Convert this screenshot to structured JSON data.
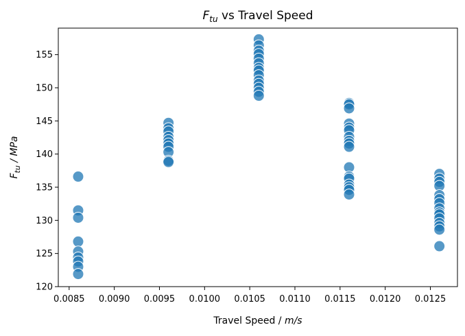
{
  "chart_data": {
    "type": "scatter",
    "title": {
      "main": "F",
      "sub": "tu",
      "rest": " vs Travel Speed"
    },
    "xlabel": {
      "text": "Travel Speed / ",
      "unit": "m/s"
    },
    "ylabel": {
      "main": "F",
      "sub": "tu",
      "unit": " / MPa"
    },
    "xlim": [
      0.00838,
      0.0128
    ],
    "ylim": [
      120,
      159
    ],
    "xticks": [
      "0.0085",
      "0.0090",
      "0.0095",
      "0.0100",
      "0.0105",
      "0.0110",
      "0.0115",
      "0.0120",
      "0.0125"
    ],
    "xtick_values": [
      0.0085,
      0.009,
      0.0095,
      0.01,
      0.0105,
      0.011,
      0.0115,
      0.012,
      0.0125
    ],
    "yticks": [
      "120",
      "125",
      "130",
      "135",
      "140",
      "145",
      "150",
      "155"
    ],
    "ytick_values": [
      120,
      125,
      130,
      135,
      140,
      145,
      150,
      155
    ],
    "grid": false,
    "marker_color": "#1f77b4",
    "series": [
      {
        "points": [
          [
            0.0086,
            136.6
          ],
          [
            0.0086,
            131.5
          ],
          [
            0.0086,
            130.4
          ],
          [
            0.0086,
            126.8
          ],
          [
            0.0086,
            125.3
          ],
          [
            0.0086,
            124.4
          ],
          [
            0.0086,
            123.8
          ],
          [
            0.0086,
            123.0
          ],
          [
            0.0086,
            121.9
          ],
          [
            0.0096,
            144.7
          ],
          [
            0.0096,
            143.9
          ],
          [
            0.0096,
            143.4
          ],
          [
            0.0096,
            142.6
          ],
          [
            0.0096,
            142.1
          ],
          [
            0.0096,
            141.6
          ],
          [
            0.0096,
            141.1
          ],
          [
            0.0096,
            140.3
          ],
          [
            0.0096,
            139.0
          ],
          [
            0.0096,
            138.8
          ],
          [
            0.0106,
            157.3
          ],
          [
            0.0106,
            156.4
          ],
          [
            0.0106,
            155.6
          ],
          [
            0.0106,
            155.1
          ],
          [
            0.0106,
            154.4
          ],
          [
            0.0106,
            153.7
          ],
          [
            0.0106,
            153.0
          ],
          [
            0.0106,
            152.6
          ],
          [
            0.0106,
            151.9
          ],
          [
            0.0106,
            151.1
          ],
          [
            0.0106,
            150.6
          ],
          [
            0.0106,
            150.0
          ],
          [
            0.0106,
            149.4
          ],
          [
            0.0106,
            148.8
          ],
          [
            0.0116,
            147.7
          ],
          [
            0.0116,
            147.5
          ],
          [
            0.0116,
            146.9
          ],
          [
            0.0116,
            144.6
          ],
          [
            0.0116,
            144.0
          ],
          [
            0.0116,
            143.6
          ],
          [
            0.0116,
            142.6
          ],
          [
            0.0116,
            142.0
          ],
          [
            0.0116,
            141.6
          ],
          [
            0.0116,
            141.1
          ],
          [
            0.0116,
            138.0
          ],
          [
            0.0116,
            136.6
          ],
          [
            0.0116,
            136.3
          ],
          [
            0.0116,
            135.4
          ],
          [
            0.0116,
            135.0
          ],
          [
            0.0116,
            134.6
          ],
          [
            0.0116,
            133.9
          ],
          [
            0.0126,
            137.0
          ],
          [
            0.0126,
            136.3
          ],
          [
            0.0126,
            135.8
          ],
          [
            0.0126,
            135.2
          ],
          [
            0.0126,
            133.8
          ],
          [
            0.0126,
            133.2
          ],
          [
            0.0126,
            132.6
          ],
          [
            0.0126,
            131.8
          ],
          [
            0.0126,
            131.2
          ],
          [
            0.0126,
            130.9
          ],
          [
            0.0126,
            130.3
          ],
          [
            0.0126,
            129.6
          ],
          [
            0.0126,
            129.1
          ],
          [
            0.0126,
            128.6
          ],
          [
            0.0126,
            126.1
          ]
        ]
      }
    ]
  }
}
